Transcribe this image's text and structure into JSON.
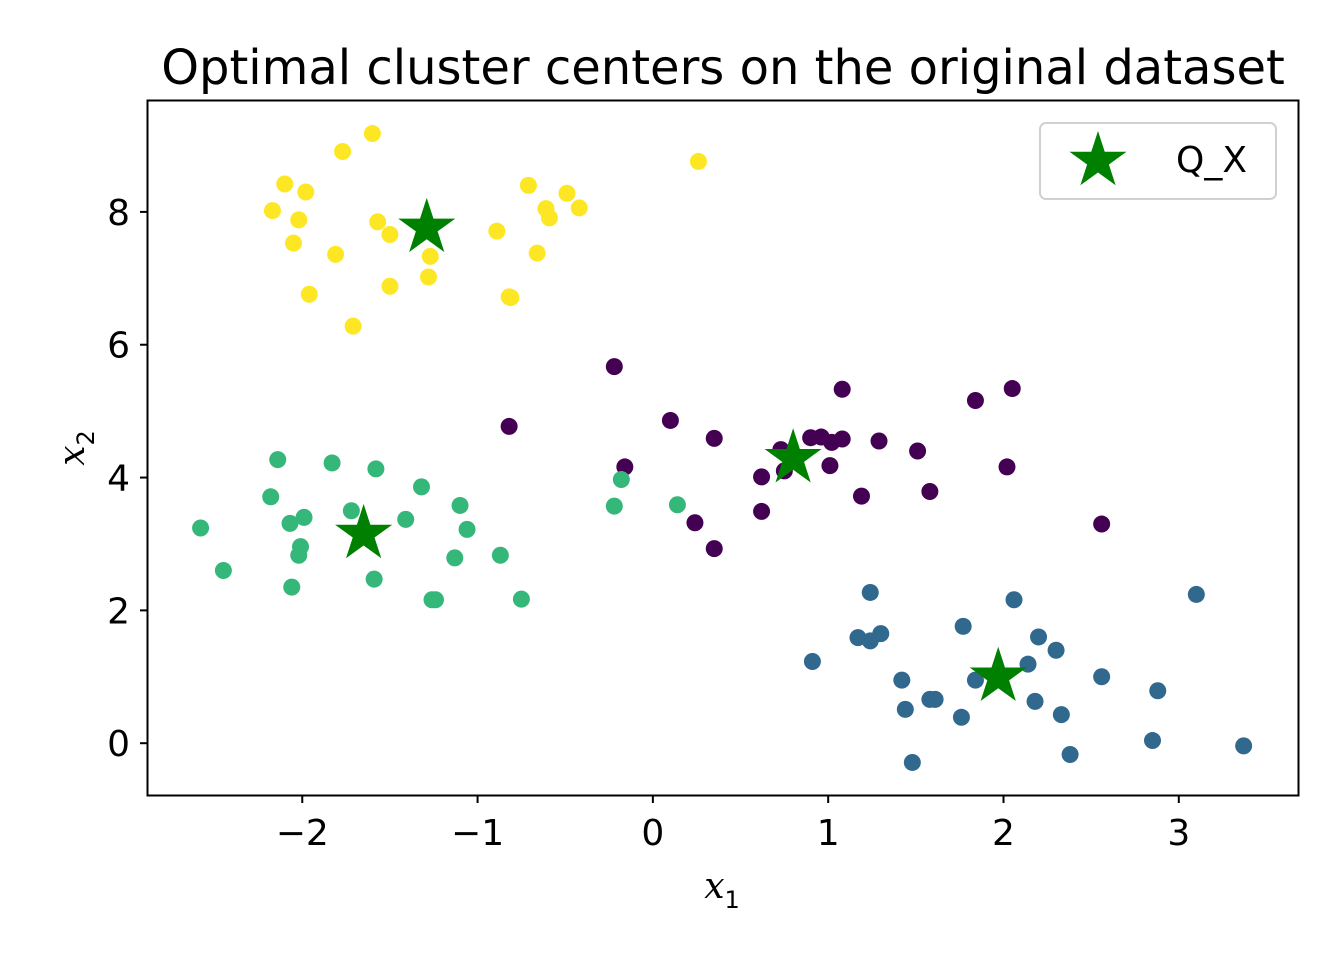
{
  "chart_data": {
    "type": "scatter",
    "title": "Optimal cluster centers on the original dataset",
    "xlabel": "x",
    "xlabel_sub": "1",
    "ylabel": "x",
    "ylabel_sub": "2",
    "xlim": [
      -2.88,
      3.68
    ],
    "ylim": [
      -0.78,
      9.67
    ],
    "xticks": [
      -2,
      -1,
      0,
      1,
      2,
      3
    ],
    "yticks": [
      0,
      2,
      4,
      6,
      8
    ],
    "xtick_labels": [
      "−2",
      "−1",
      "0",
      "1",
      "2",
      "3"
    ],
    "ytick_labels": [
      "0",
      "2",
      "4",
      "6",
      "8"
    ],
    "grid": false,
    "legend_position": "top-right",
    "clusters": [
      {
        "color": "#fde725",
        "points": [
          [
            -1.6,
            9.18
          ],
          [
            -1.77,
            8.91
          ],
          [
            -2.1,
            8.42
          ],
          [
            -1.98,
            8.3
          ],
          [
            -2.17,
            8.02
          ],
          [
            -2.02,
            7.88
          ],
          [
            -1.57,
            7.85
          ],
          [
            -1.5,
            7.66
          ],
          [
            -2.05,
            7.53
          ],
          [
            -1.81,
            7.36
          ],
          [
            -1.27,
            7.33
          ],
          [
            -1.28,
            7.02
          ],
          [
            -1.5,
            6.88
          ],
          [
            -1.96,
            6.76
          ],
          [
            -1.71,
            6.28
          ],
          [
            0.26,
            8.76
          ],
          [
            -0.71,
            8.4
          ],
          [
            -0.49,
            8.28
          ],
          [
            -0.61,
            8.05
          ],
          [
            -0.42,
            8.06
          ],
          [
            -0.59,
            7.91
          ],
          [
            -0.89,
            7.71
          ],
          [
            -0.66,
            7.38
          ],
          [
            -0.81,
            6.71
          ],
          [
            -0.82,
            6.72
          ]
        ]
      },
      {
        "color": "#440154",
        "points": [
          [
            -0.22,
            5.67
          ],
          [
            -0.82,
            4.77
          ],
          [
            0.1,
            4.86
          ],
          [
            0.35,
            4.59
          ],
          [
            -0.16,
            4.16
          ],
          [
            0.62,
            4.01
          ],
          [
            0.62,
            3.49
          ],
          [
            0.24,
            3.32
          ],
          [
            0.35,
            2.93
          ],
          [
            0.73,
            4.42
          ],
          [
            0.75,
            4.1
          ],
          [
            0.9,
            4.6
          ],
          [
            0.96,
            4.61
          ],
          [
            1.02,
            4.53
          ],
          [
            1.08,
            4.58
          ],
          [
            1.01,
            4.18
          ],
          [
            1.08,
            5.33
          ],
          [
            1.29,
            4.55
          ],
          [
            1.19,
            3.72
          ],
          [
            1.51,
            4.4
          ],
          [
            1.58,
            3.79
          ],
          [
            1.84,
            5.16
          ],
          [
            2.05,
            5.34
          ],
          [
            2.02,
            4.16
          ],
          [
            2.56,
            3.3
          ]
        ]
      },
      {
        "color": "#35b779",
        "points": [
          [
            -2.58,
            3.24
          ],
          [
            -2.45,
            2.6
          ],
          [
            -2.14,
            4.27
          ],
          [
            -2.18,
            3.71
          ],
          [
            -2.07,
            3.31
          ],
          [
            -1.99,
            3.4
          ],
          [
            -2.01,
            2.96
          ],
          [
            -2.02,
            2.83
          ],
          [
            -2.06,
            2.35
          ],
          [
            -1.83,
            4.22
          ],
          [
            -1.58,
            4.13
          ],
          [
            -1.72,
            3.5
          ],
          [
            -1.59,
            2.47
          ],
          [
            -1.41,
            3.37
          ],
          [
            -1.32,
            3.86
          ],
          [
            -1.26,
            2.16
          ],
          [
            -1.24,
            2.16
          ],
          [
            -1.13,
            2.79
          ],
          [
            -1.1,
            3.58
          ],
          [
            -1.06,
            3.22
          ],
          [
            -0.87,
            2.83
          ],
          [
            -0.75,
            2.17
          ],
          [
            -0.18,
            3.97
          ],
          [
            -0.22,
            3.57
          ],
          [
            0.14,
            3.59
          ]
        ]
      },
      {
        "color": "#31688e",
        "points": [
          [
            0.91,
            1.23
          ],
          [
            1.17,
            1.59
          ],
          [
            1.24,
            1.54
          ],
          [
            1.3,
            1.65
          ],
          [
            1.24,
            2.27
          ],
          [
            1.42,
            0.95
          ],
          [
            1.44,
            0.51
          ],
          [
            1.48,
            -0.29
          ],
          [
            1.58,
            0.66
          ],
          [
            1.61,
            0.66
          ],
          [
            1.76,
            0.39
          ],
          [
            1.77,
            1.76
          ],
          [
            1.84,
            0.95
          ],
          [
            2.06,
            2.16
          ],
          [
            2.14,
            1.19
          ],
          [
            2.18,
            0.63
          ],
          [
            2.2,
            1.6
          ],
          [
            2.3,
            1.4
          ],
          [
            2.33,
            0.43
          ],
          [
            2.38,
            -0.17
          ],
          [
            2.56,
            1.0
          ],
          [
            2.85,
            0.04
          ],
          [
            2.88,
            0.79
          ],
          [
            3.1,
            2.24
          ],
          [
            3.37,
            -0.04
          ]
        ]
      }
    ],
    "centers": {
      "name": "Q_X",
      "color": "#008000",
      "points": [
        [
          -1.29,
          7.76
        ],
        [
          -1.65,
          3.15
        ],
        [
          0.8,
          4.29
        ],
        [
          1.97,
          1.0
        ]
      ]
    }
  }
}
